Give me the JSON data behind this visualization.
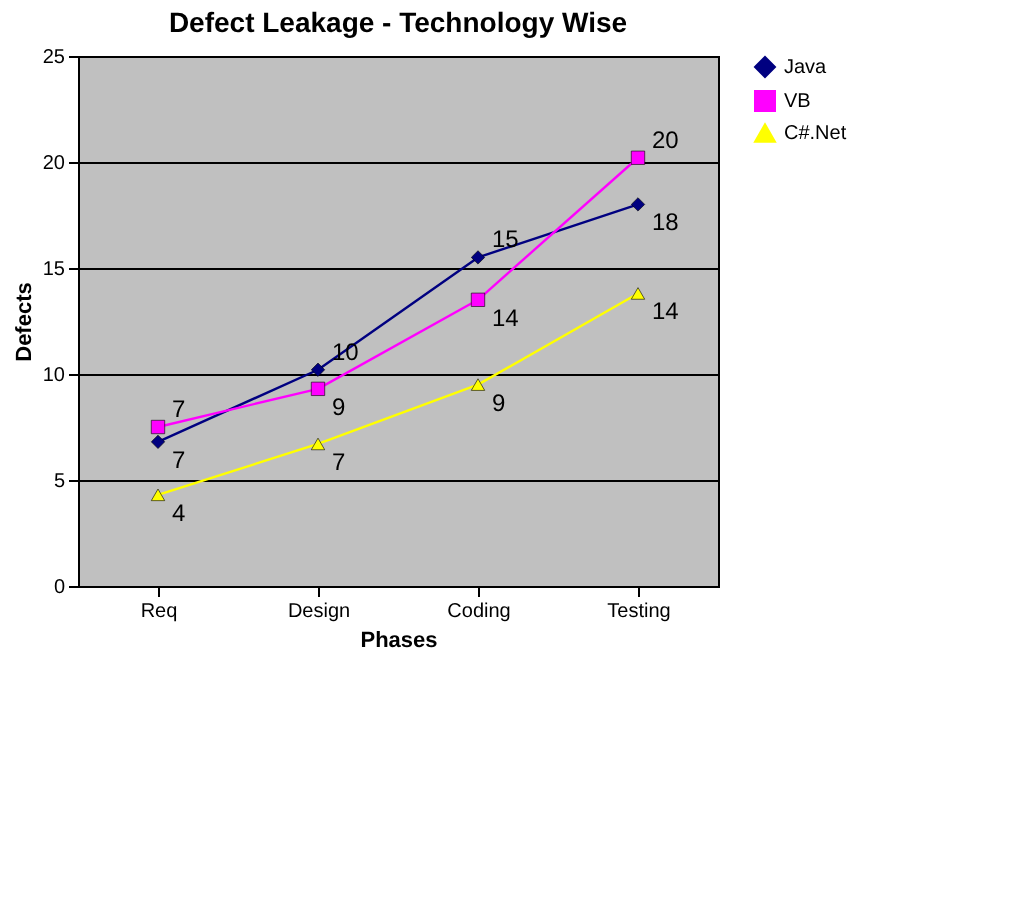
{
  "chart_data": {
    "type": "line",
    "title": "Defect Leakage - Technology Wise",
    "xlabel": "Phases",
    "ylabel": "Defects",
    "categories": [
      "Req",
      "Design",
      "Coding",
      "Testing"
    ],
    "series": [
      {
        "name": "Java",
        "color": "#000080",
        "marker": "diamond",
        "values": [
          6.8,
          10.2,
          15.5,
          18
        ],
        "value_labels": [
          "7",
          "10",
          "15",
          "18"
        ]
      },
      {
        "name": "VB",
        "color": "#ff00ff",
        "marker": "square",
        "values": [
          7.5,
          9.3,
          13.5,
          20.2
        ],
        "value_labels": [
          "7",
          "9",
          "14",
          "20"
        ]
      },
      {
        "name": "C#.Net",
        "color": "#ffff00",
        "marker": "triangle",
        "values": [
          4.3,
          6.7,
          9.5,
          13.8
        ],
        "value_labels": [
          "4",
          "7",
          "9",
          "14"
        ]
      }
    ],
    "ylim": [
      0,
      25
    ],
    "yticks": [
      0,
      5,
      10,
      15,
      20,
      25
    ],
    "grid": "y",
    "legend": "right",
    "line_style": "solid"
  }
}
